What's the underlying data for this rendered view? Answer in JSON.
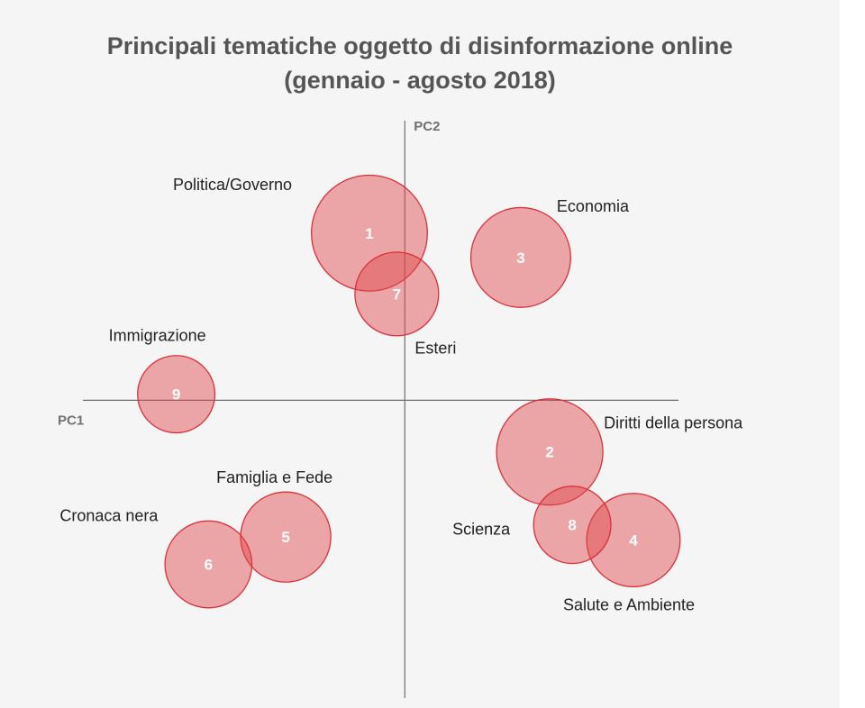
{
  "title": {
    "line1": "Principali tematiche oggetto di disinformazione online",
    "line2": "(gennaio - agosto 2018)"
  },
  "chart_data": {
    "type": "scatter",
    "title": "Principali tematiche oggetto di disinformazione online (gennaio - agosto 2018)",
    "xlabel": "PC1",
    "ylabel": "PC2",
    "xlim": [
      -1.0,
      0.85
    ],
    "ylim": [
      -0.98,
      0.92
    ],
    "grid": false,
    "legend": "none",
    "color": "#e0454a",
    "bubbles": [
      {
        "id": "1",
        "label": "Politica/Governo",
        "x": -0.11,
        "y": 0.55,
        "r": 0.18
      },
      {
        "id": "2",
        "label": "Diritti della persona",
        "x": 0.45,
        "y": -0.17,
        "r": 0.165
      },
      {
        "id": "3",
        "label": "Economia",
        "x": 0.36,
        "y": 0.47,
        "r": 0.155
      },
      {
        "id": "4",
        "label": "Salute e Ambiente",
        "x": 0.71,
        "y": -0.46,
        "r": 0.145
      },
      {
        "id": "5",
        "label": "Famiglia e Fede",
        "x": -0.37,
        "y": -0.45,
        "r": 0.14
      },
      {
        "id": "6",
        "label": "Cronaca nera",
        "x": -0.61,
        "y": -0.54,
        "r": 0.135
      },
      {
        "id": "7",
        "label": "Esteri",
        "x": -0.025,
        "y": 0.35,
        "r": 0.13
      },
      {
        "id": "8",
        "label": "Scienza",
        "x": 0.52,
        "y": -0.41,
        "r": 0.12
      },
      {
        "id": "9",
        "label": "Immigrazione",
        "x": -0.71,
        "y": 0.02,
        "r": 0.12
      }
    ]
  }
}
